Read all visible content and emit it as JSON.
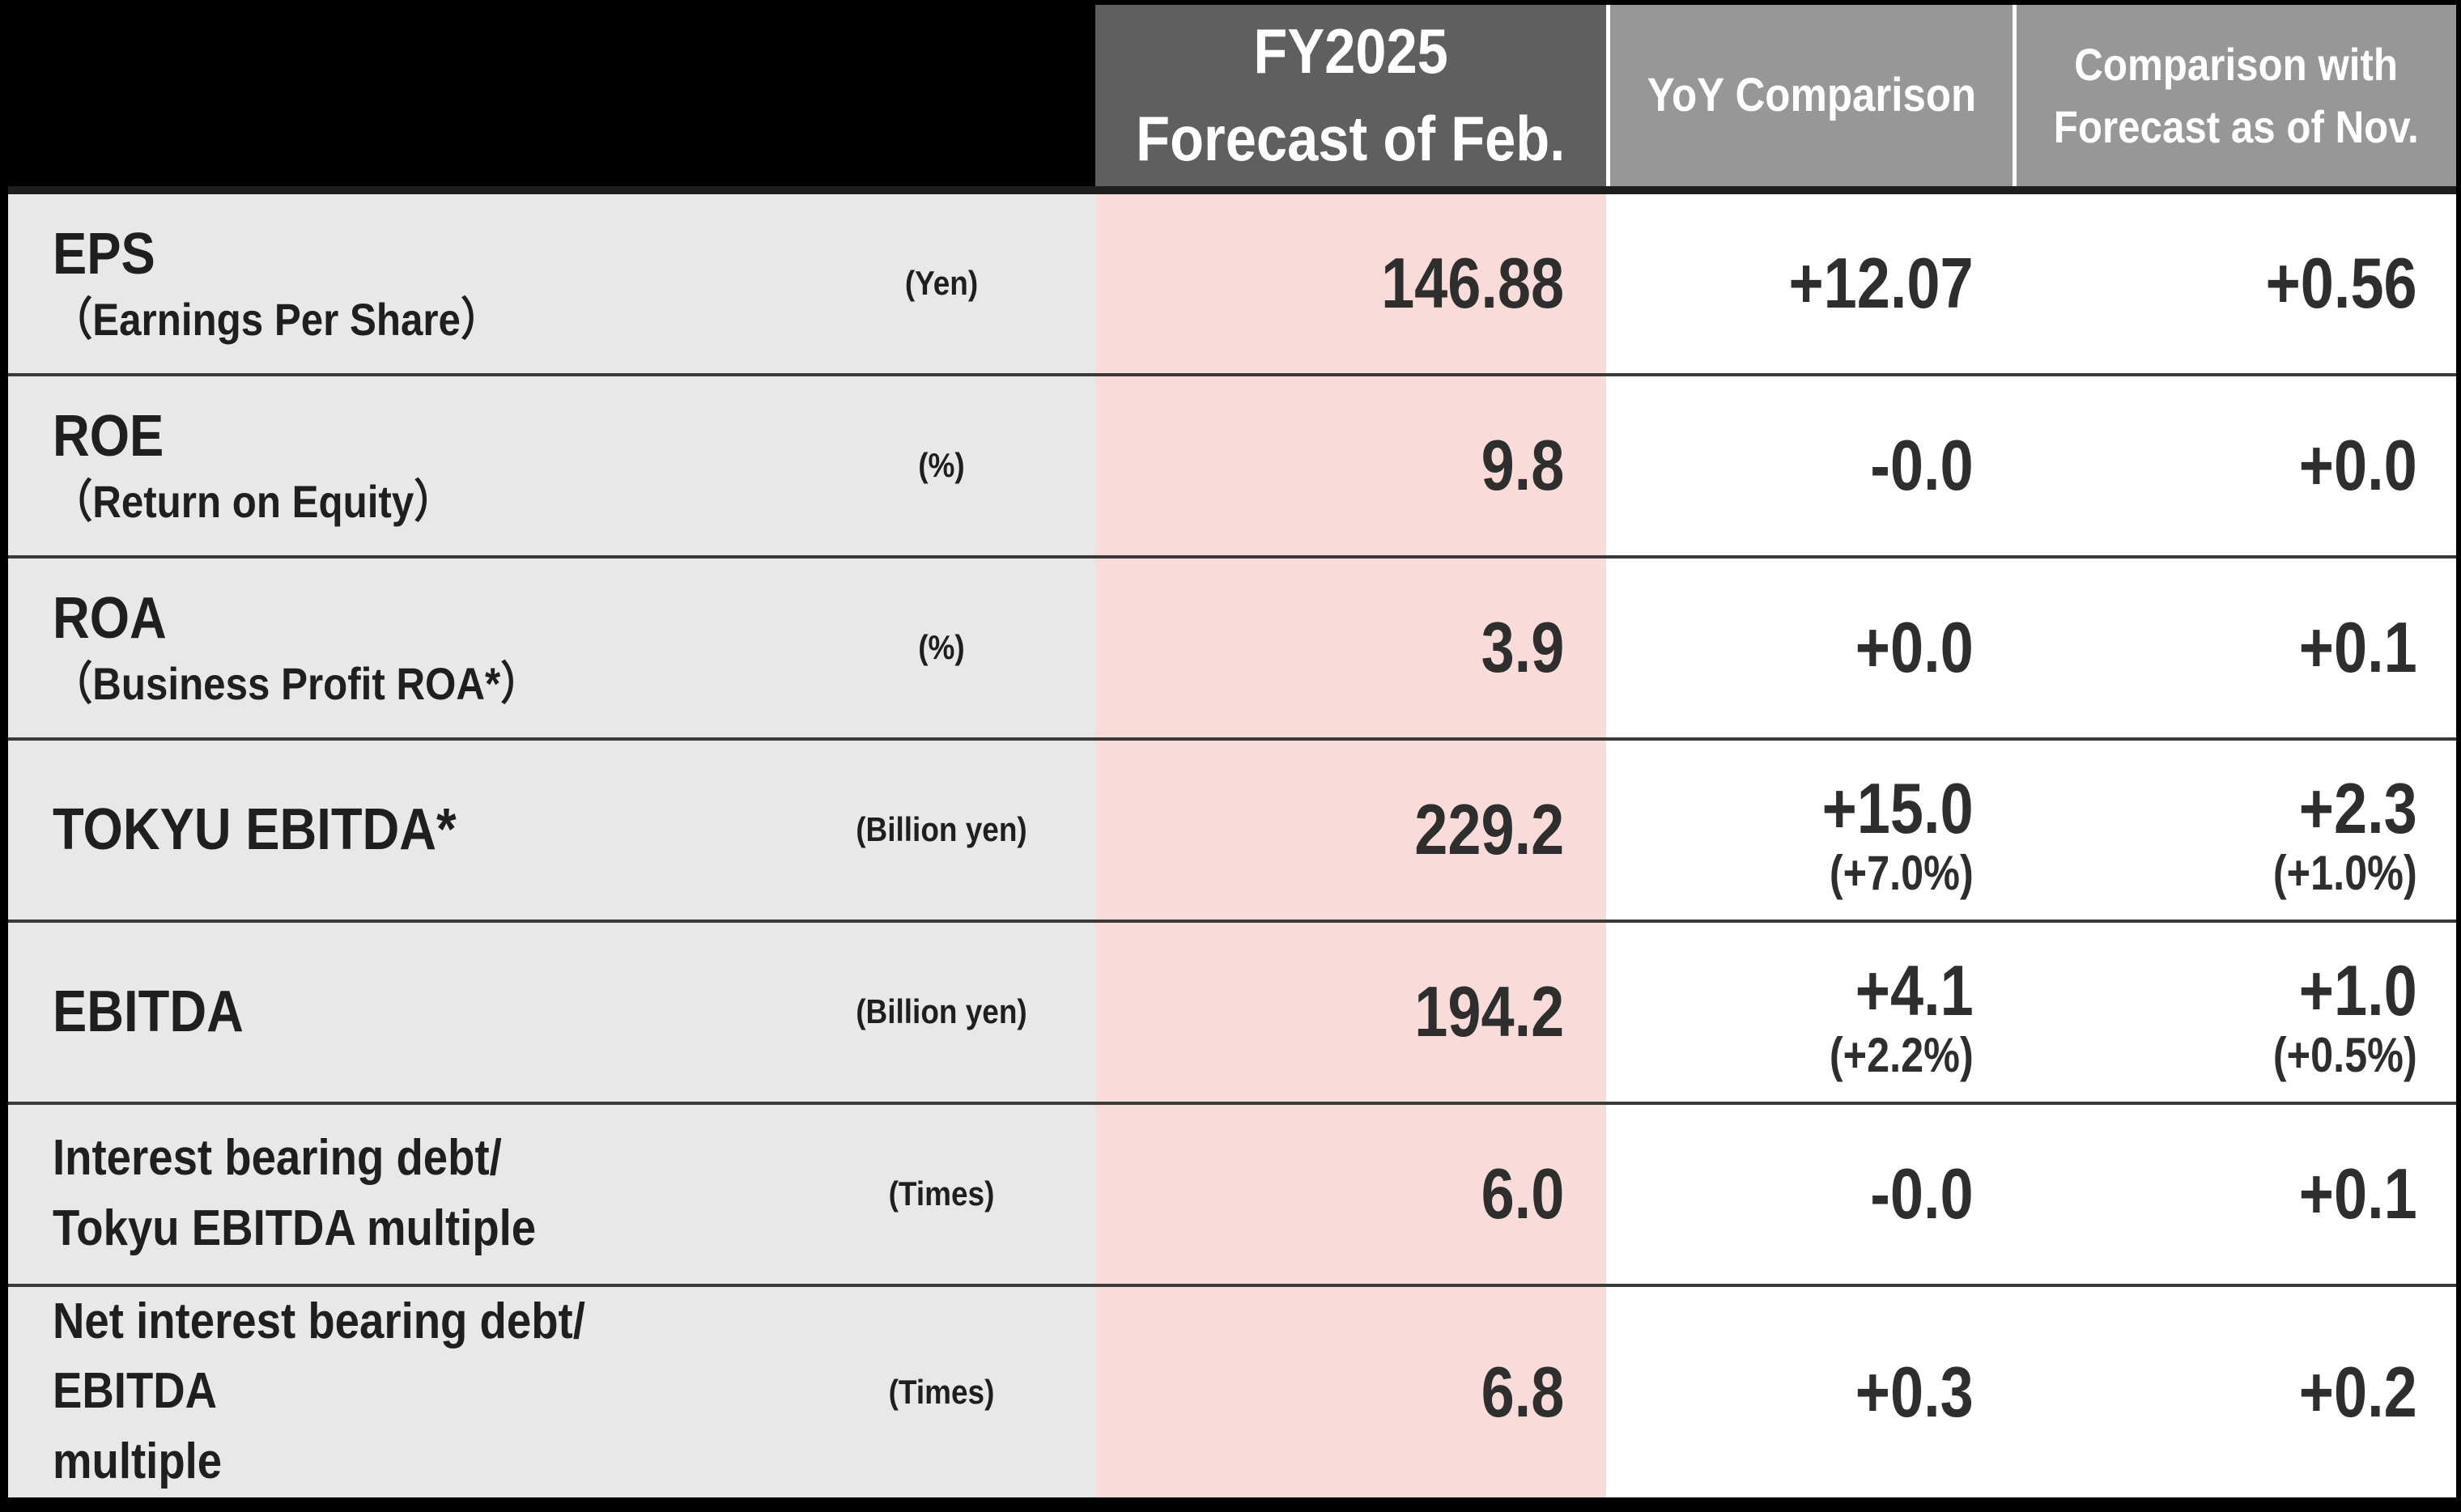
{
  "header": {
    "forecast_line1": "FY2025",
    "forecast_line2": "Forecast of Feb.",
    "yoy": "YoY Comparison",
    "nov_line1": "Comparison with",
    "nov_line2": "Forecast as of Nov."
  },
  "rows": [
    {
      "name": "EPS",
      "subname": "（Earnings Per Share）",
      "unit": "(Yen)",
      "forecast": "146.88",
      "yoy": "+12.07",
      "nov": "+0.56"
    },
    {
      "name": "ROE",
      "subname": "（Return on Equity）",
      "unit": "(%)",
      "forecast": "9.8",
      "yoy": "-0.0",
      "nov": "+0.0"
    },
    {
      "name": "ROA",
      "subname": "（Business Profit ROA*）",
      "unit": "(%)",
      "forecast": "3.9",
      "yoy": "+0.0",
      "nov": "+0.1"
    },
    {
      "name": "TOKYU EBITDA*",
      "unit": "(Billion yen)",
      "forecast": "229.2",
      "yoy": "+15.0",
      "yoy_pct": "(+7.0%)",
      "nov": "+2.3",
      "nov_pct": "(+1.0%)"
    },
    {
      "name": "EBITDA",
      "unit": "(Billion yen)",
      "forecast": "194.2",
      "yoy": "+4.1",
      "yoy_pct": "(+2.2%)",
      "nov": "+1.0",
      "nov_pct": "(+0.5%)"
    },
    {
      "name_line1": "Interest bearing debt/",
      "name_line2": "Tokyu EBITDA multiple",
      "unit": "(Times)",
      "forecast": "6.0",
      "yoy": "-0.0",
      "nov": "+0.1"
    },
    {
      "name_line1": "Net interest bearing debt/  EBITDA",
      "name_line2": "multiple",
      "unit": "(Times)",
      "forecast": "6.8",
      "yoy": "+0.3",
      "nov": "+0.2"
    }
  ],
  "colors": {
    "forecast_header_bg": "#5f5f5f",
    "comparison_header_bg": "#979797",
    "forecast_column_bg": "#f9dbd9",
    "label_column_bg": "#e9e8e8",
    "frame": "#000000"
  }
}
